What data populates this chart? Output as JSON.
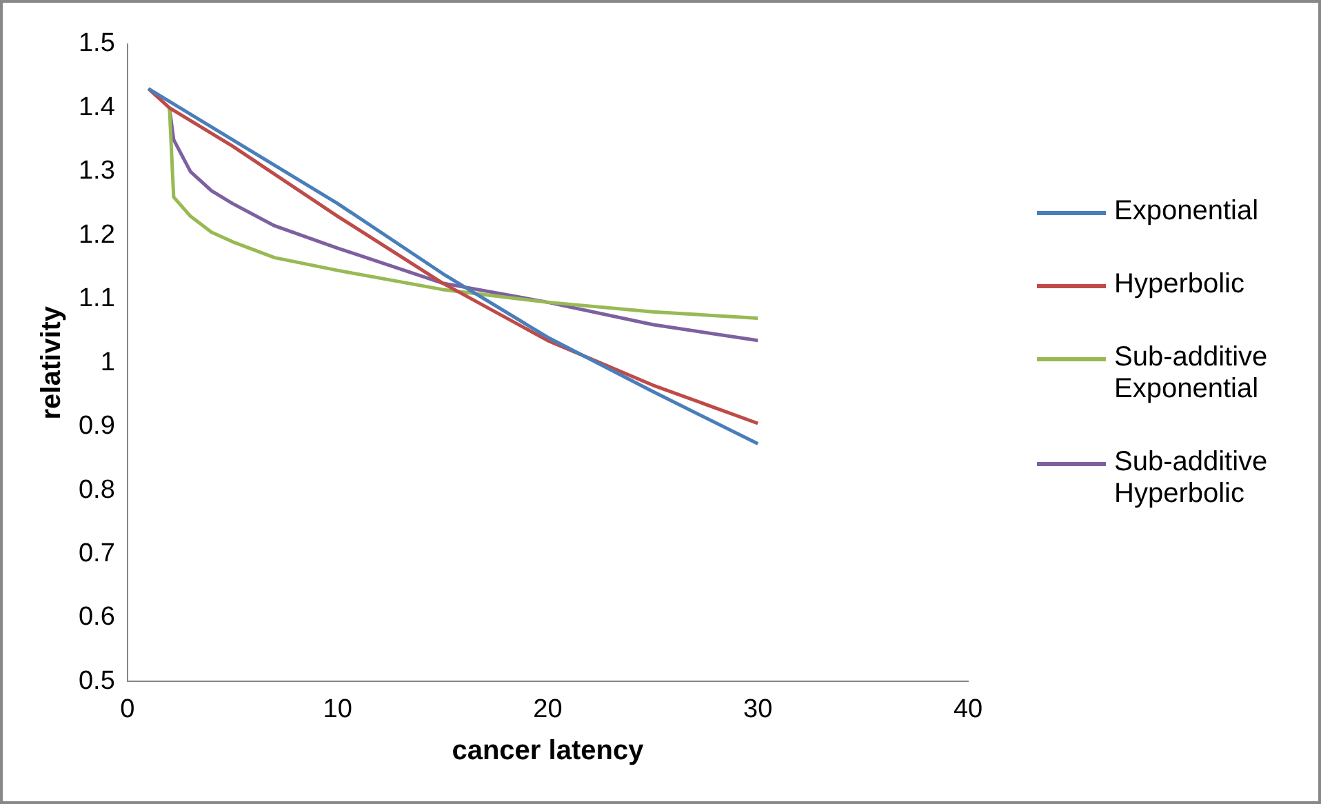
{
  "chart_data": {
    "type": "line",
    "xlabel": "cancer latency",
    "ylabel": "relativity",
    "xlim": [
      0,
      40
    ],
    "xticks": [
      0,
      10,
      20,
      30,
      40
    ],
    "ylim": [
      0.5,
      1.5
    ],
    "yticks": [
      0.5,
      0.6,
      0.7,
      0.8,
      0.9,
      1,
      1.1,
      1.2,
      1.3,
      1.4,
      1.5
    ],
    "grid": false,
    "legend": "right",
    "marker": "none",
    "line_style": "solid",
    "series": [
      {
        "name": "Exponential",
        "color": "#4a7ebb",
        "x": [
          1,
          2,
          5,
          10,
          15,
          20,
          25,
          30
        ],
        "values": [
          1.43,
          1.41,
          1.35,
          1.25,
          1.14,
          1.04,
          0.955,
          0.873
        ]
      },
      {
        "name": "Hyperbolic",
        "color": "#be4b48",
        "x": [
          1,
          2,
          5,
          10,
          15,
          20,
          25,
          30
        ],
        "values": [
          1.43,
          1.4,
          1.34,
          1.23,
          1.125,
          1.035,
          0.965,
          0.905
        ]
      },
      {
        "name": "Sub-additive Exponential",
        "color": "#98b954",
        "x": [
          2,
          2.2,
          3,
          4,
          5,
          7,
          10,
          15,
          20,
          25,
          30
        ],
        "values": [
          1.4,
          1.26,
          1.23,
          1.205,
          1.19,
          1.165,
          1.145,
          1.115,
          1.095,
          1.08,
          1.07
        ]
      },
      {
        "name": "Sub-additive Hyperbolic",
        "color": "#7d60a0",
        "x": [
          2,
          2.2,
          3,
          4,
          5,
          7,
          10,
          15,
          20,
          25,
          30
        ],
        "values": [
          1.4,
          1.35,
          1.3,
          1.27,
          1.25,
          1.215,
          1.18,
          1.125,
          1.095,
          1.06,
          1.035
        ]
      }
    ]
  }
}
